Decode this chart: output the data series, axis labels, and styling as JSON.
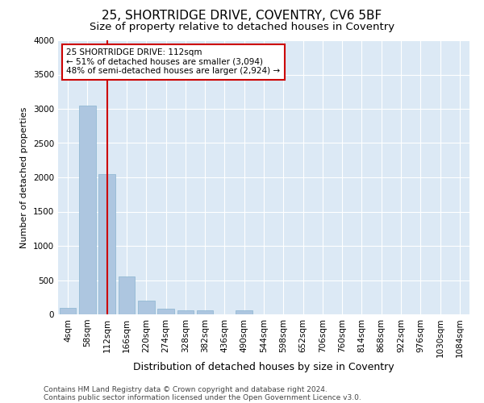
{
  "title1": "25, SHORTRIDGE DRIVE, COVENTRY, CV6 5BF",
  "title2": "Size of property relative to detached houses in Coventry",
  "xlabel": "Distribution of detached houses by size in Coventry",
  "ylabel": "Number of detached properties",
  "categories": [
    "4sqm",
    "58sqm",
    "112sqm",
    "166sqm",
    "220sqm",
    "274sqm",
    "328sqm",
    "382sqm",
    "436sqm",
    "490sqm",
    "544sqm",
    "598sqm",
    "652sqm",
    "706sqm",
    "760sqm",
    "814sqm",
    "868sqm",
    "922sqm",
    "976sqm",
    "1030sqm",
    "1084sqm"
  ],
  "values": [
    100,
    3050,
    2050,
    550,
    200,
    80,
    60,
    55,
    5,
    60,
    0,
    0,
    0,
    0,
    0,
    0,
    0,
    0,
    0,
    0,
    0
  ],
  "bar_color": "#adc6e0",
  "bar_edge_color": "#8ab4d0",
  "vline_x": 2,
  "vline_color": "#cc0000",
  "annotation_text": "25 SHORTRIDGE DRIVE: 112sqm\n← 51% of detached houses are smaller (3,094)\n48% of semi-detached houses are larger (2,924) →",
  "annotation_box_color": "#ffffff",
  "annotation_box_edge_color": "#cc0000",
  "ylim": [
    0,
    4000
  ],
  "yticks": [
    0,
    500,
    1000,
    1500,
    2000,
    2500,
    3000,
    3500,
    4000
  ],
  "bg_color": "#dce9f5",
  "footer1": "Contains HM Land Registry data © Crown copyright and database right 2024.",
  "footer2": "Contains public sector information licensed under the Open Government Licence v3.0.",
  "title1_fontsize": 11,
  "title2_fontsize": 9.5,
  "xlabel_fontsize": 9,
  "ylabel_fontsize": 8,
  "tick_fontsize": 7.5,
  "annotation_fontsize": 7.5,
  "footer_fontsize": 6.5
}
